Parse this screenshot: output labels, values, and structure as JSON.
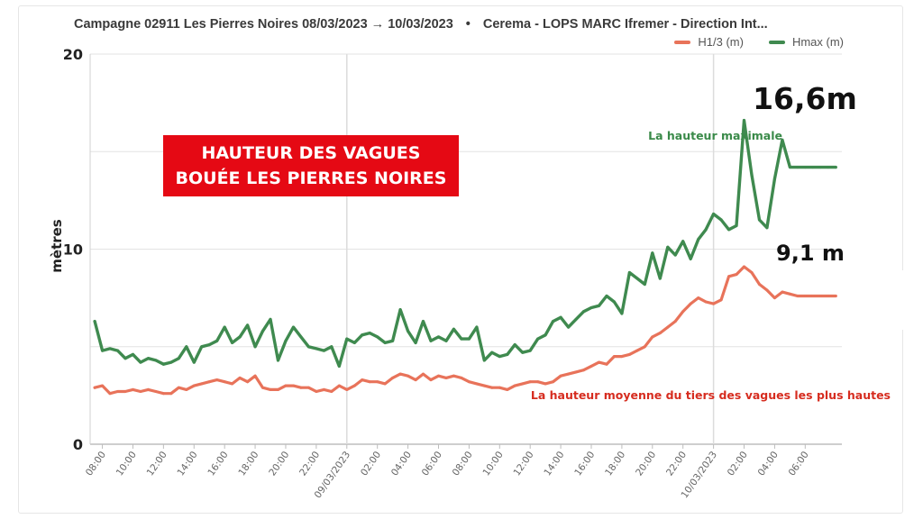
{
  "header": {
    "title": "Campagne 02911 Les Pierres Noires 08/03/2023 → 10/03/2023",
    "separator": "•",
    "source": "Cerema - LOPS MARC Ifremer - Direction Int..."
  },
  "overlay": {
    "line1": "HAUTEUR DES VAGUES",
    "line2": "BOUÉE LES PIERRES NOIRES",
    "box_color": "#e50914"
  },
  "annotations": {
    "hmax_peak": "16,6m",
    "h13_peak": "9,1 m",
    "hmax_label": "La hauteur maximale",
    "h13_label": "La hauteur moyenne du tiers des vagues les plus hautes"
  },
  "chart_data": {
    "type": "line",
    "title": "Campagne 02911 Les Pierres Noires 08/03/2023 → 10/03/2023",
    "xlabel": "",
    "ylabel": "mètres",
    "ylim": [
      0,
      20
    ],
    "y_ticks": [
      0,
      10,
      20
    ],
    "grid": true,
    "legend_position": "top-right",
    "x_range_hours": [
      -0.8,
      48.4
    ],
    "x_ticks": [
      {
        "t": 0,
        "label": "08:00"
      },
      {
        "t": 2,
        "label": "10:00"
      },
      {
        "t": 4,
        "label": "12:00"
      },
      {
        "t": 6,
        "label": "14:00"
      },
      {
        "t": 8,
        "label": "16:00"
      },
      {
        "t": 10,
        "label": "18:00"
      },
      {
        "t": 12,
        "label": "20:00"
      },
      {
        "t": 14,
        "label": "22:00"
      },
      {
        "t": 16,
        "label": "09/03/2023"
      },
      {
        "t": 18,
        "label": "02:00"
      },
      {
        "t": 20,
        "label": "04:00"
      },
      {
        "t": 22,
        "label": "06:00"
      },
      {
        "t": 24,
        "label": "08:00"
      },
      {
        "t": 26,
        "label": "10:00"
      },
      {
        "t": 28,
        "label": "12:00"
      },
      {
        "t": 30,
        "label": "14:00"
      },
      {
        "t": 32,
        "label": "16:00"
      },
      {
        "t": 34,
        "label": "18:00"
      },
      {
        "t": 36,
        "label": "20:00"
      },
      {
        "t": 38,
        "label": "22:00"
      },
      {
        "t": 40,
        "label": "10/03/2023"
      },
      {
        "t": 42,
        "label": "02:00"
      },
      {
        "t": 44,
        "label": "04:00"
      },
      {
        "t": 46,
        "label": "06:00"
      }
    ],
    "x_hours": [
      -0.5,
      0,
      0.5,
      1,
      1.5,
      2,
      2.5,
      3,
      3.5,
      4,
      4.5,
      5,
      5.5,
      6,
      6.5,
      7,
      7.5,
      8,
      8.5,
      9,
      9.5,
      10,
      10.5,
      11,
      11.5,
      12,
      12.5,
      13,
      13.5,
      14,
      14.5,
      15,
      15.5,
      16,
      16.5,
      17,
      17.5,
      18,
      18.5,
      19,
      19.5,
      20,
      20.5,
      21,
      21.5,
      22,
      22.5,
      23,
      23.5,
      24,
      24.5,
      25,
      25.5,
      26,
      26.5,
      27,
      27.5,
      28,
      28.5,
      29,
      29.5,
      30,
      30.5,
      31,
      31.5,
      32,
      32.5,
      33,
      33.5,
      34,
      34.5,
      35,
      35.5,
      36,
      36.5,
      37,
      37.5,
      38,
      38.5,
      39,
      39.5,
      40,
      40.5,
      41,
      41.5,
      42,
      42.5,
      43,
      43.5,
      44,
      44.5,
      45,
      45.5,
      46,
      46.5,
      47,
      47.5,
      48
    ],
    "series": [
      {
        "name": "H1/3 (m)",
        "color": "#e8735a",
        "values": [
          2.9,
          3.0,
          2.6,
          2.7,
          2.7,
          2.8,
          2.7,
          2.8,
          2.7,
          2.6,
          2.6,
          2.9,
          2.8,
          3.0,
          3.1,
          3.2,
          3.3,
          3.2,
          3.1,
          3.4,
          3.2,
          3.5,
          2.9,
          2.8,
          2.8,
          3.0,
          3.0,
          2.9,
          2.9,
          2.7,
          2.8,
          2.7,
          3.0,
          2.8,
          3.0,
          3.3,
          3.2,
          3.2,
          3.1,
          3.4,
          3.6,
          3.5,
          3.3,
          3.6,
          3.3,
          3.5,
          3.4,
          3.5,
          3.4,
          3.2,
          3.1,
          3.0,
          2.9,
          2.9,
          2.8,
          3.0,
          3.1,
          3.2,
          3.2,
          3.1,
          3.2,
          3.5,
          3.6,
          3.7,
          3.8,
          4.0,
          4.2,
          4.1,
          4.5,
          4.5,
          4.6,
          4.8,
          5.0,
          5.5,
          5.7,
          6.0,
          6.3,
          6.8,
          7.2,
          7.5,
          7.3,
          7.2,
          7.4,
          8.6,
          8.7,
          9.1,
          8.8,
          8.2,
          7.9,
          7.5,
          7.8,
          7.7,
          7.6,
          7.6,
          7.6,
          7.6,
          7.6,
          7.6
        ]
      },
      {
        "name": "Hmax (m)",
        "color": "#3f8a4f",
        "values": [
          6.3,
          4.8,
          4.9,
          4.8,
          4.4,
          4.6,
          4.2,
          4.4,
          4.3,
          4.1,
          4.2,
          4.4,
          5.0,
          4.2,
          5.0,
          5.1,
          5.3,
          6.0,
          5.2,
          5.5,
          6.1,
          5.0,
          5.8,
          6.4,
          4.3,
          5.3,
          6.0,
          5.5,
          5.0,
          4.9,
          4.8,
          5.0,
          4.0,
          5.4,
          5.2,
          5.6,
          5.7,
          5.5,
          5.2,
          5.3,
          6.9,
          5.8,
          5.2,
          6.3,
          5.3,
          5.5,
          5.3,
          5.9,
          5.4,
          5.4,
          6.0,
          4.3,
          4.7,
          4.5,
          4.6,
          5.1,
          4.7,
          4.8,
          5.4,
          5.6,
          6.3,
          6.5,
          6.0,
          6.4,
          6.8,
          7.0,
          7.1,
          7.6,
          7.3,
          6.7,
          8.8,
          8.5,
          8.2,
          9.8,
          8.5,
          10.1,
          9.7,
          10.4,
          9.5,
          10.5,
          11.0,
          11.8,
          11.5,
          11.0,
          11.2,
          16.6,
          13.8,
          11.5,
          11.1,
          13.6,
          15.6,
          14.2,
          14.2,
          14.2,
          14.2,
          14.2,
          14.2,
          14.2
        ]
      }
    ]
  }
}
